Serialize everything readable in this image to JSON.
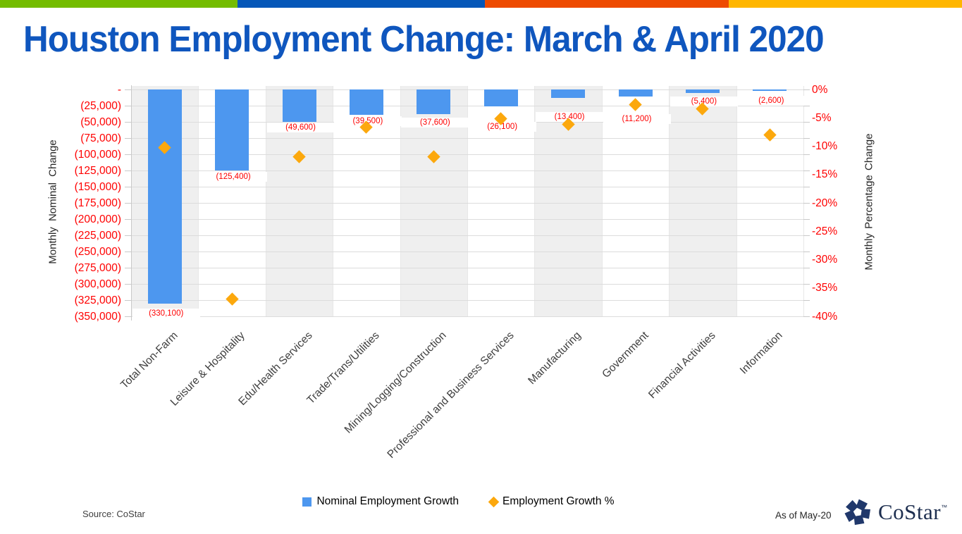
{
  "brand_bar": {
    "colors": [
      "#74BC00",
      "#0557B8",
      "#EE4A00",
      "#FFB600"
    ]
  },
  "title_color": "#0F56BE",
  "chart_data": {
    "type": "combo-bar-scatter",
    "title": "Houston Employment Change: March & April 2020",
    "categories": [
      "Total Non-Farm",
      "Leisure & Hospitality",
      "Edu/Health Services",
      "Trade/Trans/Utilities",
      "Mining/Logging/Construction",
      "Professional and Business Services",
      "Manufacturing",
      "Government",
      "Financial Activities",
      "Information"
    ],
    "series": [
      {
        "name": "Nominal Employment Growth",
        "type": "bar",
        "axis": "left",
        "color": "#4D97EF",
        "values": [
          -330100,
          -125400,
          -49600,
          -39500,
          -37600,
          -26100,
          -13400,
          -11200,
          -5400,
          -2600
        ],
        "data_labels": [
          "(330,100)",
          "(125,400)",
          "(49,600)",
          "(39,500)",
          "(37,600)",
          "(26,100)",
          "(13,400)",
          "(11,200)",
          "(5,400)",
          "(2,600)"
        ]
      },
      {
        "name": "Employment Growth %",
        "type": "scatter",
        "marker": "diamond",
        "axis": "right",
        "color": "#FCA80D",
        "values": [
          -10.2,
          -36.9,
          -11.8,
          -6.7,
          -11.8,
          -5.1,
          -6.1,
          -2.7,
          -3.4,
          -8.0
        ]
      }
    ],
    "left_axis": {
      "title": "Monthly Nominal Change",
      "min": -350000,
      "max": 0,
      "tick_step": 25000,
      "tick_labels": [
        "-",
        "(25,000)",
        "(50,000)",
        "(75,000)",
        "(100,000)",
        "(125,000)",
        "(150,000)",
        "(175,000)",
        "(200,000)",
        "(225,000)",
        "(250,000)",
        "(275,000)",
        "(300,000)",
        "(325,000)",
        "(350,000)"
      ]
    },
    "right_axis": {
      "title": "Monthly Percentage Change",
      "min": -40,
      "max": 0,
      "tick_step": 5,
      "tick_labels": [
        "0%",
        "-5%",
        "-10%",
        "-15%",
        "-20%",
        "-25%",
        "-30%",
        "-35%",
        "-40%"
      ]
    },
    "layout_hints": {
      "grid": "horizontal",
      "category_bands": "alternating",
      "legend_position": "bottom"
    },
    "styles": {
      "axis_text_color": "#FF0000",
      "data_label_color": "#FF0000",
      "gridline_color": "#DCDCDC",
      "band_color": "#EFEFEF",
      "axis_line_color": "#C9C9C9"
    }
  },
  "legend": {
    "items": [
      {
        "label": "Nominal Employment Growth",
        "marker": "square",
        "color": "#4D97EF"
      },
      {
        "label": "Employment Growth %",
        "marker": "diamond",
        "color": "#FCA80D"
      }
    ]
  },
  "footer": {
    "source": "Source: CoStar",
    "as_of": "As of May-20",
    "logo": {
      "text": "CoStar",
      "tm": "™",
      "text_color": "#1D2E4F",
      "icon_color": "#20386B"
    }
  }
}
